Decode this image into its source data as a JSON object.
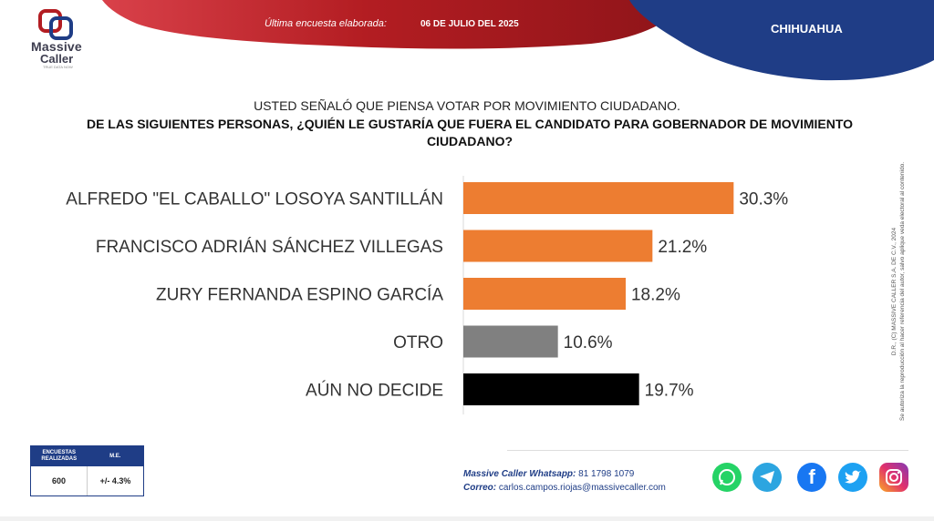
{
  "header": {
    "logo_line1": "Massive",
    "logo_line2": "Caller",
    "logo_tagline": "TRUE DATA NOW",
    "survey_label": "Última encuesta elaborada:",
    "survey_date": "06 DE JULIO DEL 2025",
    "state": "CHIHUAHUA",
    "colors": {
      "red": "#b31d22",
      "navy": "#1f3d86"
    }
  },
  "question": {
    "line1": "USTED SEÑALÓ QUE PIENSA VOTAR POR MOVIMIENTO CIUDADANO.",
    "line2": "DE LAS SIGUIENTES PERSONAS, ¿QUIÉN LE GUSTARÍA QUE FUERA EL CANDIDATO PARA GOBERNADOR DE MOVIMIENTO CIUDADANO?"
  },
  "chart_data": {
    "type": "bar",
    "orientation": "horizontal",
    "categories": [
      "ALFREDO \"EL CABALLO\" LOSOYA SANTILLÁN",
      "FRANCISCO ADRIÁN SÁNCHEZ VILLEGAS",
      "ZURY FERNANDA ESPINO GARCÍA",
      "OTRO",
      "AÚN NO DECIDE"
    ],
    "values": [
      30.3,
      21.2,
      18.2,
      10.6,
      19.7
    ],
    "value_labels": [
      "30.3%",
      "21.2%",
      "18.2%",
      "10.6%",
      "19.7%"
    ],
    "colors": [
      "#ed7d31",
      "#ed7d31",
      "#ed7d31",
      "#808080",
      "#000000"
    ],
    "xlim": [
      0,
      35
    ],
    "grid": false,
    "legend": "none"
  },
  "copyright": {
    "line1": "D.R., (C) MASSIVE CALLER S.A. DE C.V., 2024",
    "line2": "Se autoriza la reproducción al hacer referencia del autor, salvo aplique veda electoral al contenido."
  },
  "stats": {
    "head1": "ENCUESTAS REALIZADAS",
    "head2": "M.E.",
    "sample": "600",
    "margin": "+/- 4.3%"
  },
  "contact": {
    "whatsapp_label": "Massive Caller Whatsapp:",
    "whatsapp_value": "81 1798 1079",
    "email_label": "Correo:",
    "email_value": "carlos.campos.riojas@massivecaller.com"
  },
  "social": [
    "whatsapp-icon",
    "telegram-icon",
    "facebook-icon",
    "twitter-icon",
    "instagram-icon"
  ]
}
